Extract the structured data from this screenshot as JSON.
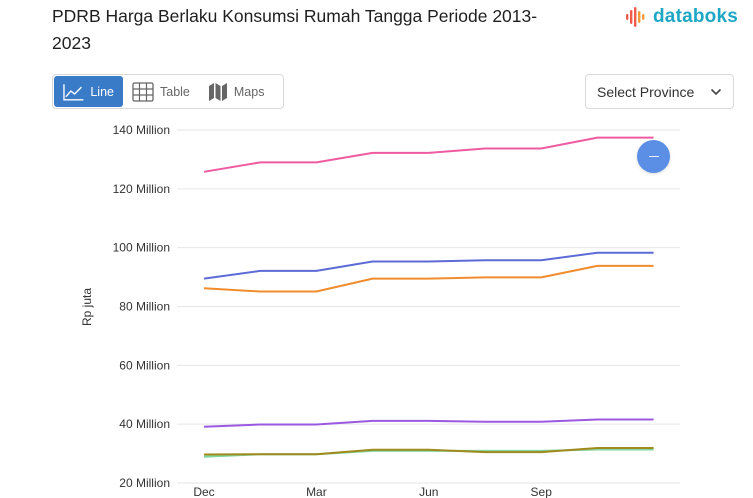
{
  "header": {
    "title": "PDRB Harga Berlaku Konsumsi Rumah Tangga Periode 2013-2023",
    "logo_text": "databoks"
  },
  "tabs": [
    {
      "label": "Line",
      "icon": "line-chart-icon",
      "active": true
    },
    {
      "label": "Table",
      "icon": "table-icon",
      "active": false
    },
    {
      "label": "Maps",
      "icon": "map-icon",
      "active": false
    }
  ],
  "province_select": {
    "value": "Select Province",
    "icon": "chevron-down-icon"
  },
  "colors": {
    "accent": "#3a7bc8",
    "brand": "#1ea7c5",
    "fab": "#5b8fe6"
  },
  "chart_data": {
    "type": "line",
    "ylabel": "Rp juta",
    "xlabel": "",
    "y_tick_labels": [
      "140 Million",
      "120 Million",
      "100 Million",
      "80 Million",
      "60 Million",
      "40 Million",
      "20 Million"
    ],
    "y_ticks": [
      140,
      120,
      100,
      80,
      60,
      40,
      20
    ],
    "ylim": [
      20,
      140
    ],
    "x_tick_labels": [
      "Dec",
      "Mar",
      "Jun",
      "Sep"
    ],
    "x_tick_positions": [
      0,
      2,
      4,
      6
    ],
    "grid": true,
    "series": [
      {
        "color": "#ef5ba1",
        "values": [
          125.8,
          129,
          129,
          132.2,
          132.2,
          133.7,
          133.7,
          137.4,
          137.4
        ]
      },
      {
        "color": "#5c6bd6",
        "values": [
          89.5,
          92.1,
          92.1,
          95.3,
          95.3,
          95.7,
          95.7,
          98.3,
          98.3
        ]
      },
      {
        "color": "#f08c2e",
        "values": [
          86.2,
          85.1,
          85.1,
          89.5,
          89.5,
          89.9,
          89.9,
          93.8,
          93.8
        ]
      },
      {
        "color": "#9b59e0",
        "values": [
          39.1,
          39.9,
          39.9,
          41.1,
          41.1,
          40.8,
          40.8,
          41.6,
          41.6
        ]
      },
      {
        "color": "#7fd6a0",
        "values": [
          28.9,
          29.8,
          29.8,
          30.9,
          30.9,
          30.9,
          30.9,
          31.4,
          31.4
        ]
      },
      {
        "color": "#a08a1e",
        "values": [
          29.7,
          29.8,
          29.8,
          31.3,
          31.3,
          30.5,
          30.5,
          31.9,
          31.9
        ]
      }
    ]
  }
}
